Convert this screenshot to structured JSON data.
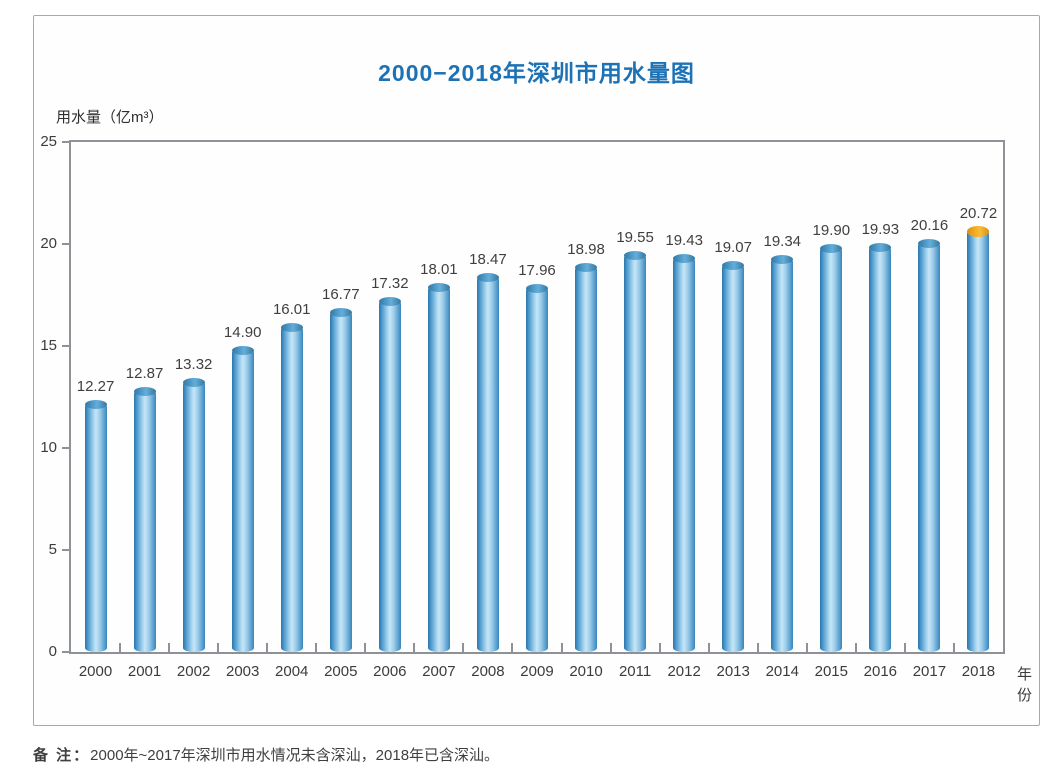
{
  "title": "2000−2018年深圳市用水量图",
  "y_axis_title": "用水量（亿m³）",
  "x_axis_title": "年份",
  "note": {
    "label": "备 注：",
    "text": "2000年~2017年深圳市用水情况未含深汕，2018年已含深汕。"
  },
  "colors": {
    "title_blue": "#1d72b5",
    "bar_blue_dark": "#2d76ad",
    "bar_blue_light": "#c5e6f8",
    "highlight_cap_orange": "#f6ae22",
    "axis_gray": "#8e9297",
    "text_dark": "#3f3f3f",
    "card_border": "#a8a8a8"
  },
  "chart_data": {
    "type": "bar",
    "title": "2000−2018年深圳市用水量图",
    "categories": [
      "2000",
      "2001",
      "2002",
      "2003",
      "2004",
      "2005",
      "2006",
      "2007",
      "2008",
      "2009",
      "2010",
      "2011",
      "2012",
      "2013",
      "2014",
      "2015",
      "2016",
      "2017",
      "2018"
    ],
    "values": [
      12.27,
      12.87,
      13.32,
      14.9,
      16.01,
      16.77,
      17.32,
      18.01,
      18.47,
      17.96,
      18.98,
      19.55,
      19.43,
      19.07,
      19.34,
      19.9,
      19.93,
      20.16,
      20.72
    ],
    "value_labels": [
      "12.27",
      "12.87",
      "13.32",
      "14.90",
      "16.01",
      "16.77",
      "17.32",
      "18.01",
      "18.47",
      "17.96",
      "18.98",
      "19.55",
      "19.43",
      "19.07",
      "19.34",
      "19.90",
      "19.93",
      "20.16",
      "20.72"
    ],
    "highlight_index": 18,
    "xlabel": "年份",
    "ylabel": "用水量（亿m³）",
    "ylim": [
      0,
      25
    ],
    "yticks": [
      0,
      5,
      10,
      15,
      20,
      25
    ],
    "grid": false,
    "legend": null,
    "bar_style": "3d-cylinder",
    "note": "备 注：2000年~2017年深圳市用水情况未含深汕，2018年已含深汕。"
  }
}
